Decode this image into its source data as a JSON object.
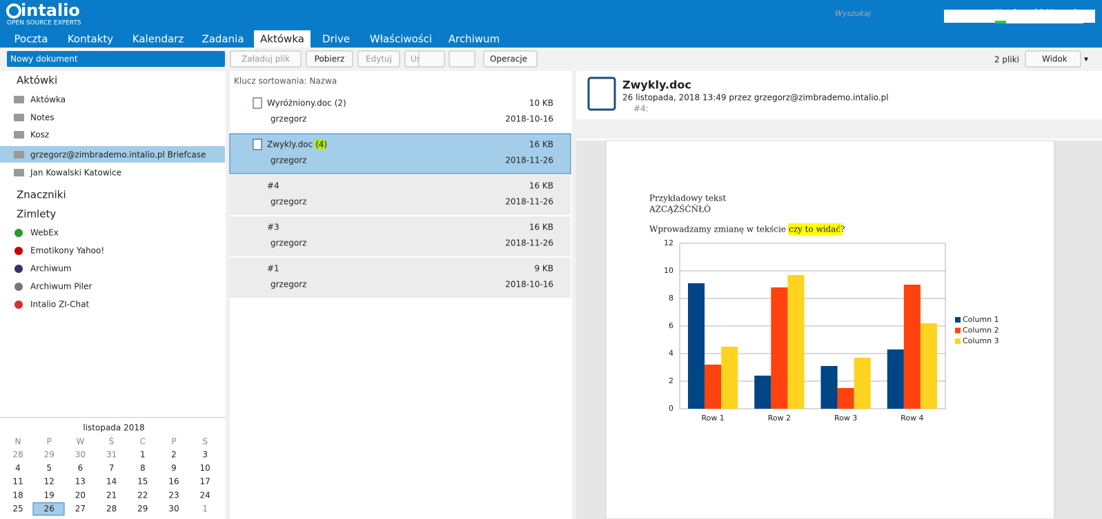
{
  "header": {
    "logo": "intalio",
    "tagline": "OPEN SOURCE EXPERTS",
    "search_placeholder": "Wyszukaj",
    "user": "Heniowski Henryk"
  },
  "tabs": [
    "Poczta",
    "Kontakty",
    "Kalendarz",
    "Zadania",
    "Aktówka",
    "Drive",
    "Właściwości",
    "Archiwum"
  ],
  "toolbar": {
    "new_document": "Nowy dokument",
    "buttons": [
      "Załaduj plik",
      "Pobierz",
      "Edytuj",
      "Usuń"
    ],
    "operations": "Operacje",
    "file_count": "2 pliki",
    "view": "Widok"
  },
  "sidebar": {
    "briefcases_title": "Aktówki",
    "briefcases": [
      "Aktówka",
      "Notes",
      "Kosz",
      "grzegorz@zimbrademo.intalio.pl Briefcase",
      "Jan Kowalski Katowice"
    ],
    "tags_title": "Znaczniki",
    "zimlets_title": "Zimlety",
    "zimlets": [
      "WebEx",
      "Emotikony Yahoo!",
      "Archiwum",
      "Archiwum Piler",
      "Intalio ZI-Chat"
    ]
  },
  "calendar": {
    "title": "listopada 2018",
    "weekdays": [
      "N",
      "P",
      "W",
      "Ś",
      "C",
      "P",
      "S"
    ],
    "weeks": [
      [
        28,
        29,
        30,
        31,
        1,
        2,
        3
      ],
      [
        4,
        5,
        6,
        7,
        8,
        9,
        10
      ],
      [
        11,
        12,
        13,
        14,
        15,
        16,
        17
      ],
      [
        18,
        19,
        20,
        21,
        22,
        23,
        24
      ],
      [
        25,
        26,
        27,
        28,
        29,
        30,
        1
      ]
    ]
  },
  "list": {
    "sort_label": "Klucz sortowania: Nazwa",
    "rows": [
      {
        "name": "Wyróżniony.doc",
        "count": "(2)",
        "size": "10 KB",
        "owner": "grzegorz",
        "date": "2018-10-16"
      },
      {
        "name": "Zwykly.doc",
        "count": "(4)",
        "size": "16 KB",
        "owner": "grzegorz",
        "date": "2018-11-26"
      },
      {
        "name": "#4",
        "size": "16 KB",
        "owner": "grzegorz",
        "date": "2018-11-26"
      },
      {
        "name": "#3",
        "size": "16 KB",
        "owner": "grzegorz",
        "date": "2018-11-26"
      },
      {
        "name": "#1",
        "size": "9 KB",
        "owner": "grzegorz",
        "date": "2018-10-16"
      }
    ]
  },
  "preview": {
    "title": "Zwykly.doc",
    "meta": "26 listopada, 2018 13:49 przez grzegorz@zimbrademo.intalio.pl",
    "version": "#4:"
  },
  "document": {
    "line1": "Przykładowy tekst",
    "line2": "AZCĄŻŚĆŃŁÓ",
    "sentence": "Wprowadzamy zmianę w tekście",
    "highlight": "czy to widać?"
  },
  "chart_data": {
    "type": "bar",
    "categories": [
      "Row 1",
      "Row 2",
      "Row 3",
      "Row 4"
    ],
    "series": [
      {
        "name": "Column 1",
        "color": "#004586",
        "values": [
          9.1,
          2.4,
          3.1,
          4.3
        ]
      },
      {
        "name": "Column 2",
        "color": "#ff420e",
        "values": [
          3.2,
          8.8,
          1.5,
          9.0
        ]
      },
      {
        "name": "Column 3",
        "color": "#ffd320",
        "values": [
          4.5,
          9.7,
          3.7,
          6.2
        ]
      }
    ],
    "ylim": [
      0,
      12
    ],
    "yticks": [
      0,
      2,
      4,
      6,
      8,
      10,
      12
    ],
    "grid": true,
    "legend": "right"
  }
}
